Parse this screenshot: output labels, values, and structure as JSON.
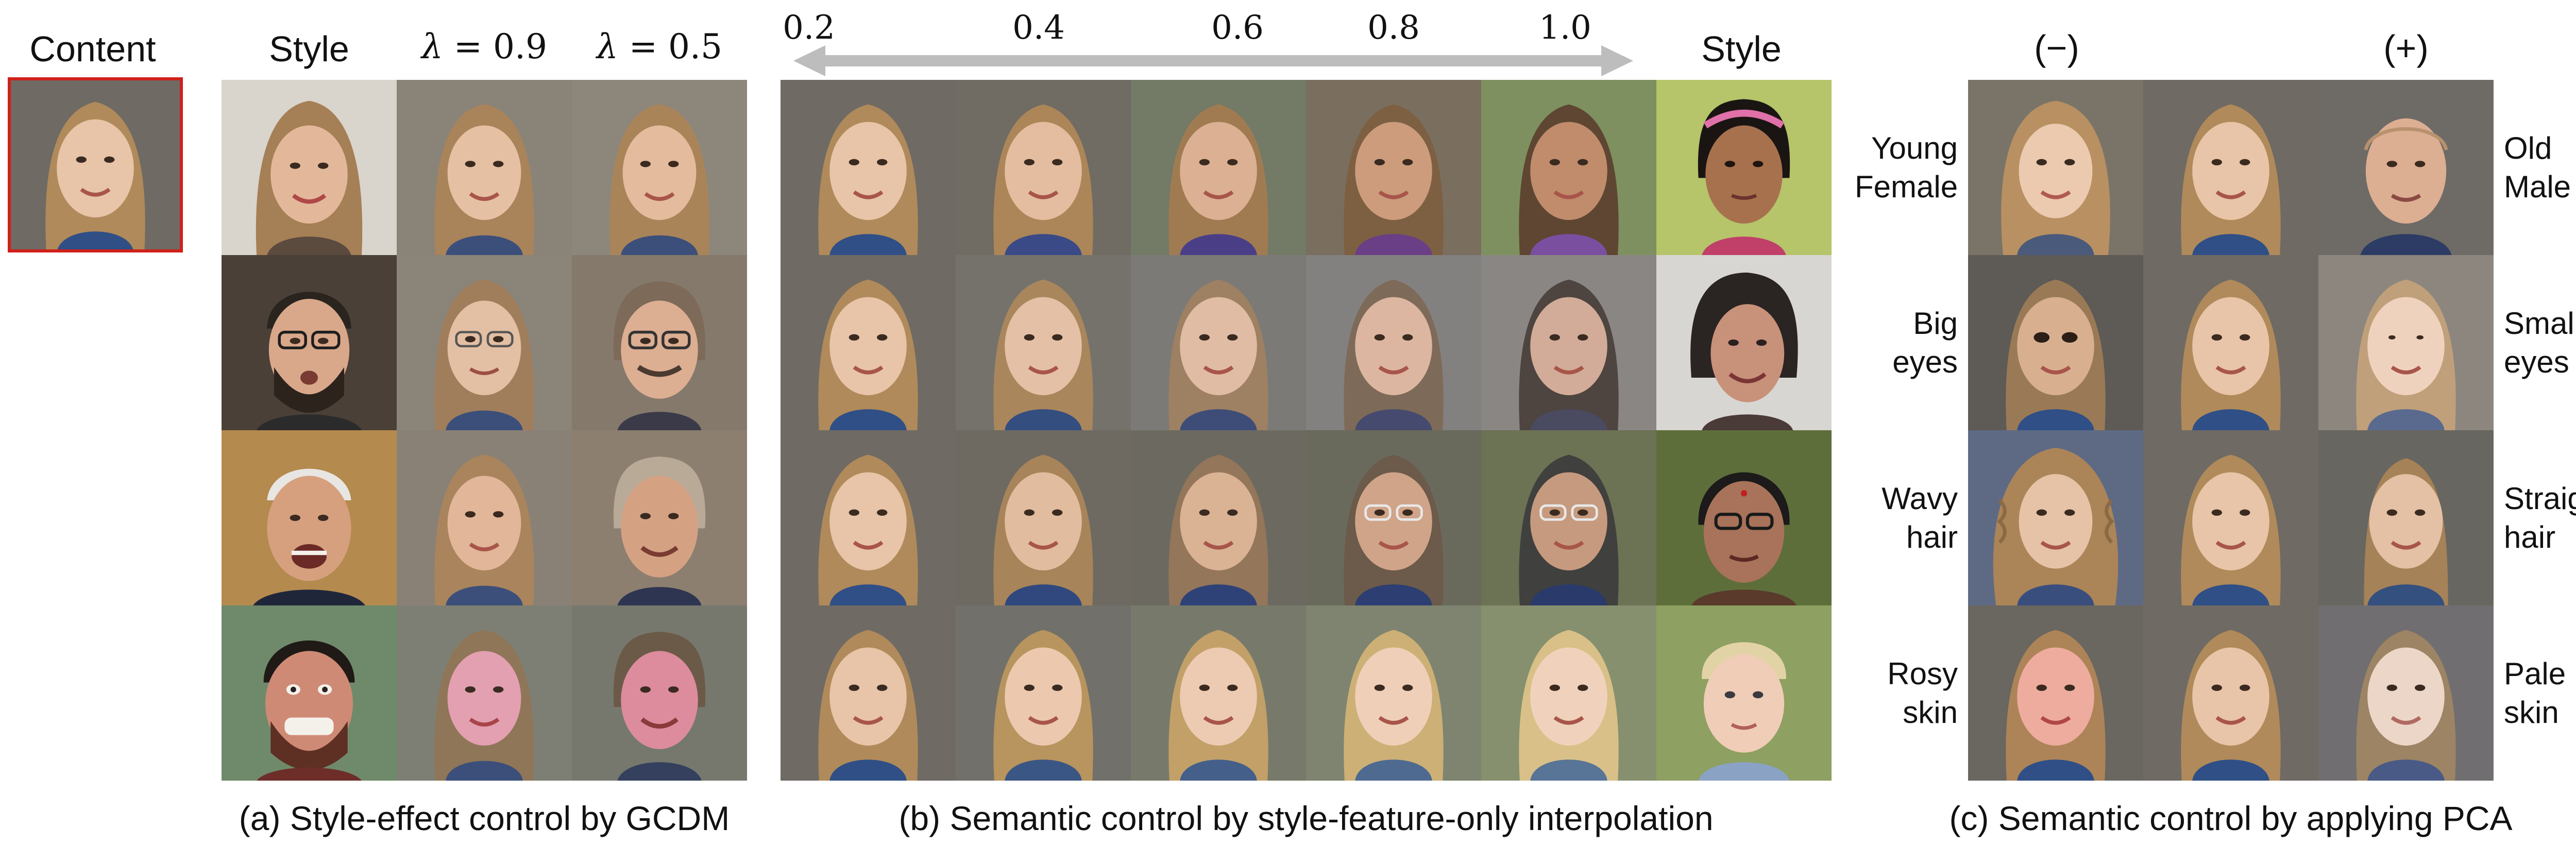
{
  "headers": {
    "content": "Content",
    "style_a": "Style",
    "lambda_1": {
      "symbol": "λ",
      "value": "= 0.9"
    },
    "lambda_2": {
      "symbol": "λ",
      "value": "= 0.5"
    },
    "interp": [
      "0.2",
      "0.4",
      "0.6",
      "0.8",
      "1.0"
    ],
    "style_b": "Style",
    "neg": "(−)",
    "pos": "(+)"
  },
  "captions": {
    "a": "(a) Style-effect control by GCDM",
    "b": "(b) Semantic control by style-feature-only interpolation",
    "c": "(c) Semantic control  by applying PCA"
  },
  "pca_rows": [
    {
      "neg": [
        "Young",
        "Female"
      ],
      "pos": [
        "Old",
        "Male"
      ]
    },
    {
      "neg": [
        "Big",
        "eyes"
      ],
      "pos": [
        "Small",
        "eyes"
      ]
    },
    {
      "neg": [
        "Wavy",
        "hair"
      ],
      "pos": [
        "Straight",
        "hair"
      ]
    },
    {
      "neg": [
        "Rosy",
        "skin"
      ],
      "pos": [
        "Pale",
        "skin"
      ]
    }
  ],
  "colors": {
    "content_border": "#d0201a",
    "arrow": "#bdbdbd"
  }
}
